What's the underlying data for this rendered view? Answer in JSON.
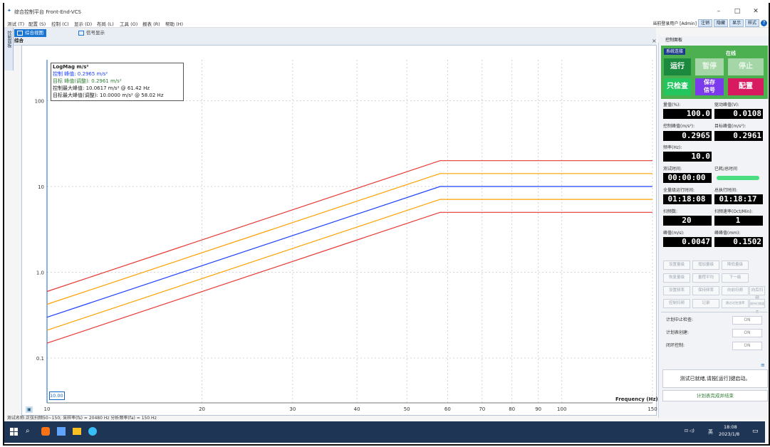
{
  "window": {
    "title": "综合控制平台 Front-End-VCS",
    "controls": [
      "–",
      "□",
      "✕"
    ]
  },
  "menu": {
    "items": [
      "测试 (T)",
      "配置 (S)",
      "控制 (C)",
      "显示 (D)",
      "布局 (L)",
      "工具 (O)",
      "报表 (R)",
      "帮助 (H)"
    ],
    "login_text": "当前登录用户 [Admin]",
    "logout": "注销",
    "hide": "隐藏",
    "show": "显示",
    "style": "样式"
  },
  "tabs": {
    "side_vertical": "控制面板",
    "overview": "综合视图",
    "signal": "信号显示",
    "sub": "综合"
  },
  "chart_data": {
    "type": "line",
    "title": "",
    "ylabel": "LogMag m/s²",
    "xlabel": "Frequency (Hz)",
    "yscale": "log",
    "xscale": "log",
    "ylim": [
      0.03,
      300
    ],
    "xlim": [
      10,
      150
    ],
    "x_ticks": [
      10,
      20,
      30,
      40,
      50,
      60,
      70,
      80,
      90,
      100,
      150
    ],
    "y_ticks": [
      "100",
      "10",
      "1.0",
      "0.1"
    ],
    "series": [
      {
        "color": "#e53935",
        "x": [
          10,
          58.02,
          150
        ],
        "y": [
          0.597,
          20.0,
          20.0
        ]
      },
      {
        "color": "#ffa000",
        "x": [
          10,
          58.02,
          150
        ],
        "y": [
          0.423,
          14.16,
          14.16
        ]
      },
      {
        "color": "#1e40ff",
        "x": [
          10,
          58.02,
          150
        ],
        "y": [
          0.299,
          10.0,
          10.0
        ]
      },
      {
        "color": "#ffa000",
        "x": [
          10,
          58.02,
          150
        ],
        "y": [
          0.211,
          7.08,
          7.08
        ]
      },
      {
        "color": "#e53935",
        "x": [
          10,
          58.02,
          150
        ],
        "y": [
          0.149,
          5.0,
          5.0
        ]
      }
    ],
    "legend": [
      {
        "text": "控制 峰值: 0.2965 m/s²",
        "color": "#1e40ff"
      },
      {
        "text": "目标 峰值(调整): 0.2961 m/s²",
        "color": "#2e7d32"
      },
      {
        "text": "控制最大峰值: 10.0617 m/s² @ 61.42 Hz",
        "color": "#222222"
      },
      {
        "text": "目标最大峰值(调整): 10.0000 m/s² @ 58.02 Hz",
        "color": "#222222"
      }
    ],
    "x_min_box": "10.00",
    "grid": true
  },
  "status_line": "测试名称:正弦扫频50~150; 采样率(fs) = 20480 Hz 分析频率(fa) = 150 Hz",
  "right_panel": {
    "header": "控制面板",
    "system_btn": "系统连接",
    "status": "在线",
    "run": "运行",
    "pause": "暂停",
    "stop": "停止",
    "check_only": "只检查",
    "save_signal": "保存\n信号",
    "config": "配置",
    "readouts": [
      {
        "label": "量值(%):",
        "value": "100.0"
      },
      {
        "label": "驱动峰值(V):",
        "value": "0.0108"
      },
      {
        "label": "控制峰值(m/s²):",
        "value": "0.2965"
      },
      {
        "label": "目标峰值(m/s²):",
        "value": "0.2961"
      },
      {
        "label": "频率(Hz):",
        "value": "10.0"
      },
      {
        "label": "测试时间:",
        "value": "00:00:00"
      },
      {
        "label": "已耗/总时间",
        "value": ""
      },
      {
        "label": "全量级运行时间:",
        "value": "01:18:08"
      },
      {
        "label": "总执行时间:",
        "value": "01:18:17"
      },
      {
        "label": "扫频数:",
        "value": "20"
      },
      {
        "label": "扫频速率(Oct/Min):",
        "value": "1"
      },
      {
        "label": "峰值(m/s):",
        "value": "0.0047"
      },
      {
        "label": "峰峰值(mm):",
        "value": "0.1502"
      }
    ],
    "grey_buttons": [
      "设置量级",
      "增加量级",
      "降低量级",
      "恢复量级",
      "量程平均",
      "下一级",
      "设置频率",
      "保持频率",
      "向前扫频",
      "向后扫频",
      "控制扫频",
      "记录",
      "通过过往速率",
      "保持扫频速度"
    ],
    "options": [
      {
        "label": "计划中止检查:",
        "value": "ON"
      },
      {
        "label": "计划表创建:",
        "value": "ON"
      },
      {
        "label": "闭环控制:",
        "value": "ON"
      }
    ],
    "message": "测试已就绪,请按[运行]键启动。",
    "plan_end": "计划表完成并结束"
  },
  "taskbar": {
    "ime": "英",
    "time": "18:08",
    "date": "2023/1/8"
  }
}
